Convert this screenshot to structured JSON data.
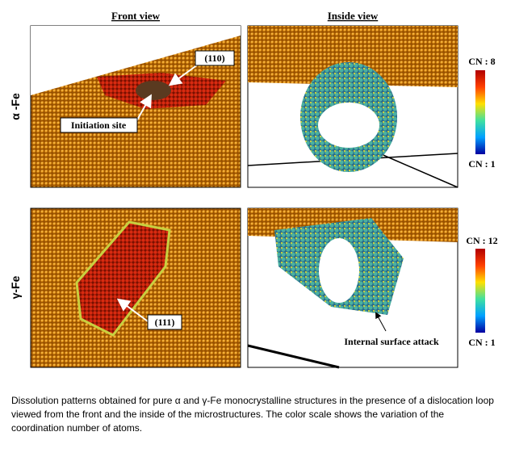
{
  "column_headers": [
    "Front view",
    "Inside view"
  ],
  "rows": [
    {
      "label": "α -Fe",
      "annotations": {
        "plane": "(110)",
        "site": "Initiation site"
      },
      "color_scale": {
        "max_label": "CN : 8",
        "min_label": "CN : 1"
      }
    },
    {
      "label": "γ-Fe",
      "annotations": {
        "plane": "(111)",
        "attack": "Internal surface attack"
      },
      "color_scale": {
        "max_label": "CN : 12",
        "min_label": "CN : 1"
      }
    }
  ],
  "caption": "Dissolution patterns obtained for pure α and γ-Fe monocrystalline structures in the presence of a dislocation loop viewed from the front and the inside of the microstructures. The color scale shows the variation of the coordination number of atoms."
}
